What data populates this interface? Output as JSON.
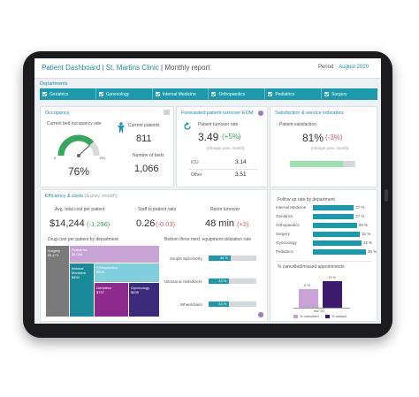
{
  "header": {
    "title_main": "Patient Dashboard | St. Martins Clinic",
    "title_sub": " | Monthly report",
    "period_label": "Period",
    "period_value": "August 2020"
  },
  "departments": {
    "label": "Departments",
    "items": [
      "Geriatrics",
      "Gynecology",
      "Internal Medicine",
      "Orthopaedics",
      "Pediatrics",
      "Surgery"
    ]
  },
  "occupancy": {
    "title": "Occupancy",
    "rate_label": "Current bed occupancy rate",
    "gauge_min": "0",
    "gauge_max": "100",
    "rate_value": "76%",
    "rate_fraction": 0.76,
    "patients_label": "Current patients",
    "patients_value": "811",
    "beds_label": "Number of beds",
    "beds_value": "1,066"
  },
  "turnover": {
    "title": "Forecasted patient turnover EOM",
    "rate_label": "Patient turnover rate",
    "rate_value": "3.49",
    "rate_change": "(+5%)",
    "change_note": "(change prev. month)",
    "rows": [
      {
        "label": "ICU",
        "value": "3.14"
      },
      {
        "label": "Other",
        "value": "3.51"
      }
    ]
  },
  "satisfaction": {
    "title": "Satisfaction & service indicators",
    "label": "Patient satisfaction",
    "value": "81%",
    "change": "(-3%)",
    "change_note": "(change prev. month)",
    "bar_fraction": 0.81
  },
  "efficiency": {
    "title": "Efficiency & costs",
    "title_note": "(Δ prev. month)",
    "kpis": [
      {
        "label": "Avg. total cost per patient",
        "value": "$14,244",
        "change": "(-1,296)",
        "tone": "green"
      },
      {
        "label": "Staff to patient ratio",
        "value": "0.26",
        "change": "(-0.03)",
        "tone": "red"
      },
      {
        "label": "Room turnover",
        "value": "48 min",
        "change": "(+2)",
        "tone": "red"
      }
    ]
  },
  "drug_cost": {
    "title": "Drug cost per patient by department",
    "cells": [
      {
        "name": "Surgery",
        "value": "$1,171",
        "color": "#7a7a7a"
      },
      {
        "name": "Pediatrics",
        "value": "$1,083",
        "color": "#c9a3d6"
      },
      {
        "name": "Internal Medicine",
        "value": "$934",
        "color": "#1a8a9a"
      },
      {
        "name": "Orthopaedics",
        "value": "$826",
        "color": "#7fd0dc"
      },
      {
        "name": "Geriatrics",
        "value": "$757",
        "color": "#8e2a8e"
      },
      {
        "name": "Gynecology",
        "value": "$639",
        "color": "#3c2a7a"
      }
    ]
  },
  "equipment": {
    "title": "Bottom three med. equipment utilization rate",
    "items": [
      {
        "name": "Simple Spirometry",
        "value": "46 %",
        "pct": 46
      },
      {
        "name": "Ultrasonic Nebulizers",
        "value": "43 %",
        "pct": 43
      },
      {
        "name": "Wheelchairs",
        "value": "43 %",
        "pct": 43
      }
    ]
  },
  "followup": {
    "title": "Follow up rate by department",
    "items": [
      {
        "name": "Internal Medicine",
        "value": "27 %",
        "pct": 27
      },
      {
        "name": "Geriatrics",
        "value": "27 %",
        "pct": 27
      },
      {
        "name": "Orthopaedics",
        "value": "29 %",
        "pct": 29
      },
      {
        "name": "Surgery",
        "value": "31 %",
        "pct": 31
      },
      {
        "name": "Gynecology",
        "value": "32 %",
        "pct": 32
      },
      {
        "name": "Pediatrics",
        "value": "35 %",
        "pct": 35
      }
    ]
  },
  "cancelled": {
    "title": "% cancelled/missed appointments",
    "category": "Aw '20",
    "bars": [
      {
        "name": "% cancelled",
        "value": "9 %",
        "pct": 9,
        "color": "#c9a3d6"
      },
      {
        "name": "% missed",
        "value": "13 %",
        "pct": 13,
        "color": "#3c1a6e"
      }
    ]
  },
  "colors": {
    "accent": "#1a9aac",
    "positive": "#35a85c",
    "negative": "#e0596b"
  }
}
